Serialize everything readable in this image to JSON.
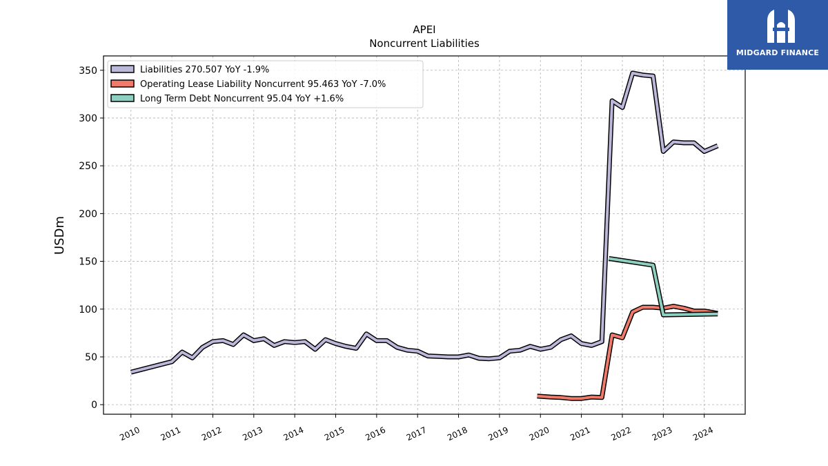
{
  "brand": {
    "name": "MIDGARD FINANCE",
    "bg_color": "#2f5aa8"
  },
  "chart_data": {
    "type": "line",
    "title": "APEI",
    "subtitle": "Noncurrent  Liabilities",
    "xlabel": "",
    "ylabel": "USDm",
    "xlim": [
      2009.33,
      2025.0
    ],
    "ylim": [
      -10,
      365
    ],
    "yticks": [
      0,
      50,
      100,
      150,
      200,
      250,
      300,
      350
    ],
    "xticks": [
      "2010",
      "2011",
      "2012",
      "2013",
      "2014",
      "2015",
      "2016",
      "2017",
      "2018",
      "2019",
      "2020",
      "2021",
      "2022",
      "2023",
      "2024"
    ],
    "grid": true,
    "legend_position": "top-left",
    "series": [
      {
        "name": "Liabilities",
        "legend": "Liabilities  270.507 YoY -1.9%",
        "color": "#bcb8da",
        "points": [
          [
            2010.0,
            34
          ],
          [
            2011.0,
            45
          ],
          [
            2011.25,
            55
          ],
          [
            2011.5,
            49
          ],
          [
            2011.75,
            60
          ],
          [
            2012.0,
            66
          ],
          [
            2012.25,
            67
          ],
          [
            2012.5,
            63
          ],
          [
            2012.75,
            73
          ],
          [
            2013.0,
            67
          ],
          [
            2013.25,
            69
          ],
          [
            2013.5,
            62
          ],
          [
            2013.75,
            66
          ],
          [
            2014.0,
            65
          ],
          [
            2014.25,
            66
          ],
          [
            2014.5,
            58
          ],
          [
            2014.75,
            68
          ],
          [
            2015.0,
            64
          ],
          [
            2015.25,
            61
          ],
          [
            2015.5,
            59
          ],
          [
            2015.75,
            74
          ],
          [
            2016.0,
            67
          ],
          [
            2016.25,
            67
          ],
          [
            2016.5,
            60
          ],
          [
            2016.75,
            57
          ],
          [
            2017.0,
            56
          ],
          [
            2017.25,
            51
          ],
          [
            2017.5,
            50.5
          ],
          [
            2017.75,
            50
          ],
          [
            2018.0,
            50
          ],
          [
            2018.25,
            52
          ],
          [
            2018.5,
            48.5
          ],
          [
            2018.75,
            48
          ],
          [
            2019.0,
            49
          ],
          [
            2019.25,
            56
          ],
          [
            2019.5,
            57
          ],
          [
            2019.75,
            61
          ],
          [
            2020.0,
            58
          ],
          [
            2020.25,
            60
          ],
          [
            2020.5,
            68
          ],
          [
            2020.75,
            72
          ],
          [
            2021.0,
            64
          ],
          [
            2021.25,
            62
          ],
          [
            2021.5,
            66
          ],
          [
            2021.75,
            318
          ],
          [
            2022.0,
            311
          ],
          [
            2022.25,
            347
          ],
          [
            2022.5,
            345
          ],
          [
            2022.75,
            344
          ],
          [
            2023.0,
            265
          ],
          [
            2023.25,
            275
          ],
          [
            2023.5,
            274
          ],
          [
            2023.75,
            274
          ],
          [
            2024.0,
            265
          ],
          [
            2024.33,
            271
          ]
        ]
      },
      {
        "name": "Operating Lease Liability Noncurrent",
        "legend": "Operating Lease Liability Noncurrent  95.463 YoY -7.0%",
        "color": "#f07b6a",
        "points": [
          [
            2019.92,
            9
          ],
          [
            2020.25,
            8
          ],
          [
            2020.5,
            7.5
          ],
          [
            2020.75,
            6.5
          ],
          [
            2021.0,
            6.5
          ],
          [
            2021.25,
            8
          ],
          [
            2021.5,
            7.5
          ],
          [
            2021.75,
            73
          ],
          [
            2022.0,
            70
          ],
          [
            2022.25,
            97
          ],
          [
            2022.5,
            102
          ],
          [
            2022.75,
            102
          ],
          [
            2023.0,
            101
          ],
          [
            2023.25,
            103
          ],
          [
            2023.5,
            101
          ],
          [
            2023.75,
            98
          ],
          [
            2024.0,
            98
          ],
          [
            2024.33,
            95.5
          ]
        ]
      },
      {
        "name": "Long Term Debt Noncurrent",
        "legend": "Long Term Debt Noncurrent  95.04 YoY +1.6%",
        "color": "#8dcfc0",
        "points": [
          [
            2021.67,
            153
          ],
          [
            2022.75,
            146
          ],
          [
            2023.0,
            94
          ],
          [
            2024.33,
            95
          ]
        ]
      }
    ]
  }
}
